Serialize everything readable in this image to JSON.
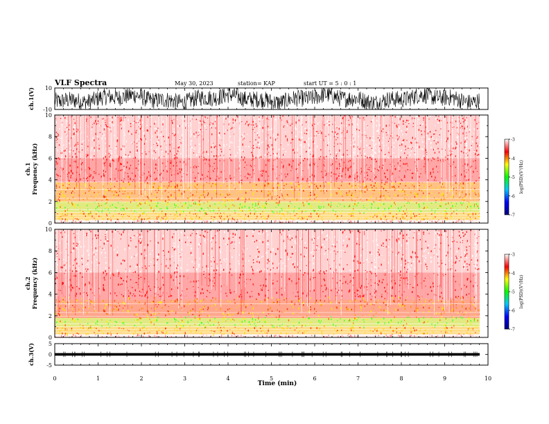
{
  "header": {
    "title": "VLF Spectra",
    "date": "May 30, 2023",
    "station": "station= KAP",
    "start": "start  UT =   5 : 0  : 1"
  },
  "chart_data": [
    {
      "type": "line",
      "ylabel": "ch.1(V)",
      "ylim": [
        -10,
        10
      ],
      "yticks": [
        "10",
        "-10"
      ],
      "xlim": [
        0,
        10
      ],
      "trace": "dense black waveform spanning nearly full range"
    },
    {
      "type": "heatmap",
      "ylabel": "ch.1\nFrequency (kHz)",
      "ylim": [
        0,
        10
      ],
      "yticks": [
        "0",
        "2",
        "4",
        "6",
        "8",
        "10"
      ],
      "xlim": [
        0,
        10
      ],
      "colorbar": {
        "label": "log(PSD)(V²/Hz)",
        "range": [
          -7,
          -3
        ],
        "ticks": [
          "-3",
          "-4",
          "-5",
          "-6",
          "-7"
        ],
        "colors": [
          "#000080",
          "#0000ff",
          "#00c8ff",
          "#00ff00",
          "#ffff00",
          "#ff0000",
          "#ffffff"
        ]
      },
      "bands": [
        {
          "range_khz": [
            0.3,
            1.0
          ],
          "level": "yellow-orange"
        },
        {
          "range_khz": [
            1.0,
            2.0
          ],
          "level": "green-yellow"
        },
        {
          "range_khz": [
            2.0,
            3.8
          ],
          "level": "orange-yellow"
        },
        {
          "range_khz": [
            3.8,
            6.0
          ],
          "level": "red"
        },
        {
          "range_khz": [
            6.0,
            10.0
          ],
          "level": "red-white"
        }
      ]
    },
    {
      "type": "heatmap",
      "ylabel": "ch.2\nFrequency (kHz)",
      "ylim": [
        0,
        10
      ],
      "yticks": [
        "0",
        "2",
        "4",
        "6",
        "8",
        "10"
      ],
      "xlim": [
        0,
        10
      ],
      "colorbar": {
        "label": "log(PSD)(V²/Hz)",
        "range": [
          -7,
          -3
        ],
        "ticks": [
          "-3",
          "-4",
          "-5",
          "-6",
          "-7"
        ],
        "colors": [
          "#000080",
          "#0000ff",
          "#00c8ff",
          "#00ff00",
          "#ffff00",
          "#ff0000",
          "#ffffff"
        ]
      },
      "bands": [
        {
          "range_khz": [
            0.3,
            1.0
          ],
          "level": "yellow-orange"
        },
        {
          "range_khz": [
            1.0,
            1.8
          ],
          "level": "green-yellow"
        },
        {
          "range_khz": [
            1.8,
            3.5
          ],
          "level": "orange-red"
        },
        {
          "range_khz": [
            3.5,
            6.0
          ],
          "level": "red"
        },
        {
          "range_khz": [
            6.0,
            10.0
          ],
          "level": "red-white"
        }
      ]
    },
    {
      "type": "line",
      "ylabel": "ch.3(V)",
      "ylim": [
        -5,
        5
      ],
      "yticks": [
        "5",
        "0",
        "-5"
      ],
      "xlim": [
        0,
        10
      ],
      "trace": "thick flat black band near 0"
    }
  ],
  "xaxis": {
    "label": "Time (min)",
    "ticks": [
      "0",
      "1",
      "2",
      "3",
      "4",
      "5",
      "6",
      "7",
      "8",
      "9",
      "10"
    ]
  }
}
